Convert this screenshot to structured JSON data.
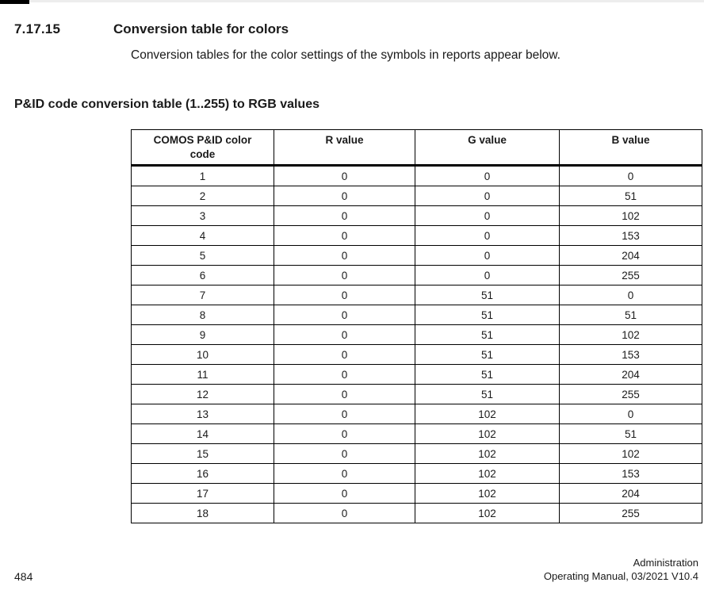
{
  "colors": {
    "page_bg": "#ffffff",
    "text": "#1a1a1a",
    "table_border": "#000000",
    "top_edge_line": "#ededed",
    "top_corner_mark": "#000000"
  },
  "section": {
    "number": "7.17.15",
    "title": "Conversion table for colors",
    "intro": "Conversion tables for the color settings of the symbols in reports appear below."
  },
  "table_heading": "P&ID code conversion table (1..255) to RGB values",
  "table": {
    "col1_header": "COMOS P&ID color code",
    "col2_header": "R value",
    "col3_header": "G value",
    "col4_header": "B value",
    "rows": [
      {
        "code": "1",
        "r": "0",
        "g": "0",
        "b": "0"
      },
      {
        "code": "2",
        "r": "0",
        "g": "0",
        "b": "51"
      },
      {
        "code": "3",
        "r": "0",
        "g": "0",
        "b": "102"
      },
      {
        "code": "4",
        "r": "0",
        "g": "0",
        "b": "153"
      },
      {
        "code": "5",
        "r": "0",
        "g": "0",
        "b": "204"
      },
      {
        "code": "6",
        "r": "0",
        "g": "0",
        "b": "255"
      },
      {
        "code": "7",
        "r": "0",
        "g": "51",
        "b": "0"
      },
      {
        "code": "8",
        "r": "0",
        "g": "51",
        "b": "51"
      },
      {
        "code": "9",
        "r": "0",
        "g": "51",
        "b": "102"
      },
      {
        "code": "10",
        "r": "0",
        "g": "51",
        "b": "153"
      },
      {
        "code": "11",
        "r": "0",
        "g": "51",
        "b": "204"
      },
      {
        "code": "12",
        "r": "0",
        "g": "51",
        "b": "255"
      },
      {
        "code": "13",
        "r": "0",
        "g": "102",
        "b": "0"
      },
      {
        "code": "14",
        "r": "0",
        "g": "102",
        "b": "51"
      },
      {
        "code": "15",
        "r": "0",
        "g": "102",
        "b": "102"
      },
      {
        "code": "16",
        "r": "0",
        "g": "102",
        "b": "153"
      },
      {
        "code": "17",
        "r": "0",
        "g": "102",
        "b": "204"
      },
      {
        "code": "18",
        "r": "0",
        "g": "102",
        "b": "255"
      }
    ]
  },
  "footer": {
    "page_number": "484",
    "doc_title": "Administration",
    "doc_info": "Operating Manual, 03/2021 V10.4"
  }
}
